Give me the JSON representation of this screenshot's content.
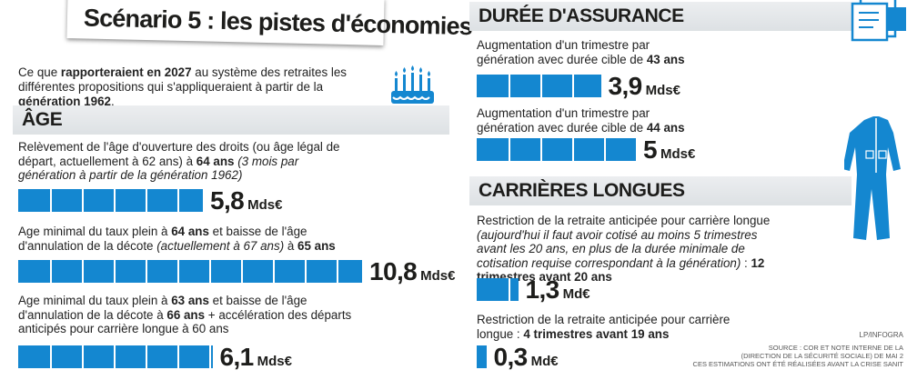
{
  "title": "Scénario 5 : les pistes d'économies",
  "intro": {
    "p1": "Ce que ",
    "b1": "rapporteraient en 2027",
    "p2": " au système des retraites les différentes propositions qui s'appliqueraient à partir de la ",
    "b2": "génération 1962",
    "p3": "."
  },
  "sections": {
    "age": "ÂGE",
    "duree": "DURÉE D'ASSURANCE",
    "carrieres": "CARRIÈRES LONGUES"
  },
  "items": [
    {
      "p1": "Relèvement de l'âge d'ouverture des droits (ou âge légal de départ, actuellement à 62 ans) à ",
      "b1": "64 ans",
      "p2": " ",
      "i1": "(3 mois par génération à partir de la génération 1962)",
      "p3": "",
      "b2": "",
      "p4": "",
      "num": "5,8",
      "unit": "Mds€"
    },
    {
      "p1": "Age minimal du taux plein à ",
      "b1": "64 ans",
      "p2": " et baisse de l'âge d'annulation de la décote ",
      "i1": "(actuellement à 67 ans)",
      "p3": " à ",
      "b2": "65 ans",
      "p4": "",
      "num": "10,8",
      "unit": "Mds€"
    },
    {
      "p1": "Age minimal du taux plein à ",
      "b1": "63 ans",
      "p2": " et baisse de l'âge d'annulation de la décote à ",
      "i1": "",
      "p3": "",
      "b2": "66 ans",
      "p4": " + accélération des départs anticipés pour carrière longue à 60 ans",
      "num": "6,1",
      "unit": "Mds€"
    },
    {
      "p1": "Augmentation d'un trimestre par génération avec durée cible de ",
      "b1": "43 ans",
      "p2": "",
      "i1": "",
      "p3": "",
      "b2": "",
      "p4": "",
      "num": "3,9",
      "unit": "Mds€"
    },
    {
      "p1": "Augmentation d'un trimestre par génération avec durée cible de ",
      "b1": "44 ans",
      "p2": "",
      "i1": "",
      "p3": "",
      "b2": "",
      "p4": "",
      "num": "5",
      "unit": "Mds€"
    },
    {
      "p1": "Restriction de la retraite anticipée pour carrière longue ",
      "b1": "",
      "p2": "",
      "i1": "(aujourd'hui il faut avoir cotisé au moins 5 trimestres avant les 20 ans, en plus de la durée minimale de cotisation requise correspondant à la génération)",
      "p3": " : ",
      "b2": "12 trimestres avant 20 ans",
      "p4": "",
      "num": "1,3",
      "unit": "Md€"
    },
    {
      "p1": "Restriction de la retraite anticipée pour carrière longue : ",
      "b1": "4 trimestres avant 19 ans",
      "p2": "",
      "i1": "",
      "p3": "",
      "b2": "",
      "p4": "",
      "num": "0,3",
      "unit": "Md€"
    }
  ],
  "credits": {
    "brand": "LP/INFOGRA",
    "line1": "SOURCE : COR ET NOTE INTERNE DE LA",
    "line2": "(DIRECTION DE LA SÉCURITÉ SOCIALE) DE MAI 2",
    "line3": "CES ESTIMATIONS ONT ÉTÉ RÉALISÉES AVANT LA CRISE SANIT"
  },
  "colors": {
    "bar": "#1487d0",
    "band": "#e3e6e9",
    "text": "#1d1d1b"
  },
  "icons": [
    "birthday-cake-icon",
    "documents-icon",
    "work-overalls-icon"
  ],
  "chart_data": {
    "type": "bar",
    "unit": "Mds€",
    "categories": [
      "64 ans",
      "taux plein 64 ans / 65 ans",
      "taux plein 63 ans / 66 ans",
      "43 ans",
      "44 ans",
      "12 trimestres avant 20 ans",
      "4 trimestres avant 19 ans"
    ],
    "values": [
      5.8,
      10.8,
      6.1,
      3.9,
      5,
      1.3,
      0.3
    ]
  }
}
